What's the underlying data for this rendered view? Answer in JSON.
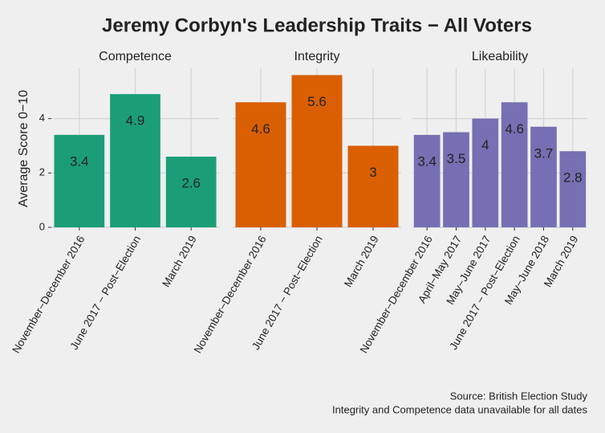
{
  "title": "Jeremy Corbyn's Leadership Traits − All Voters",
  "ylabel": "Average Score 0−10",
  "caption": [
    "Source: British Election Study",
    "Integrity and Competence data unavailable for all dates"
  ],
  "chart_data": [
    {
      "type": "bar",
      "title": "Competence",
      "categories": [
        "November−December 2016",
        "June 2017 − Post−Election",
        "March 2019"
      ],
      "values": [
        3.4,
        4.9,
        2.6
      ],
      "color": "#1b9e77",
      "ylim": [
        0,
        5.85
      ],
      "yticks": [
        0,
        2,
        4
      ],
      "grid": true
    },
    {
      "type": "bar",
      "title": "Integrity",
      "categories": [
        "November−December 2016",
        "June 2017 − Post−Election",
        "March 2019"
      ],
      "values": [
        4.6,
        5.6,
        3
      ],
      "color": "#d95f02",
      "ylim": [
        0,
        5.85
      ],
      "yticks": [
        0,
        2,
        4
      ],
      "grid": true
    },
    {
      "type": "bar",
      "title": "Likeability",
      "categories": [
        "November−December 2016",
        "April−May 2017",
        "May−June 2017",
        "June 2017 − Post−Election",
        "May−June 2018",
        "March 2019"
      ],
      "values": [
        3.4,
        3.5,
        4,
        4.6,
        3.7,
        2.8
      ],
      "color": "#7570b3",
      "ylim": [
        0,
        5.85
      ],
      "yticks": [
        0,
        2,
        4
      ],
      "grid": true
    }
  ]
}
